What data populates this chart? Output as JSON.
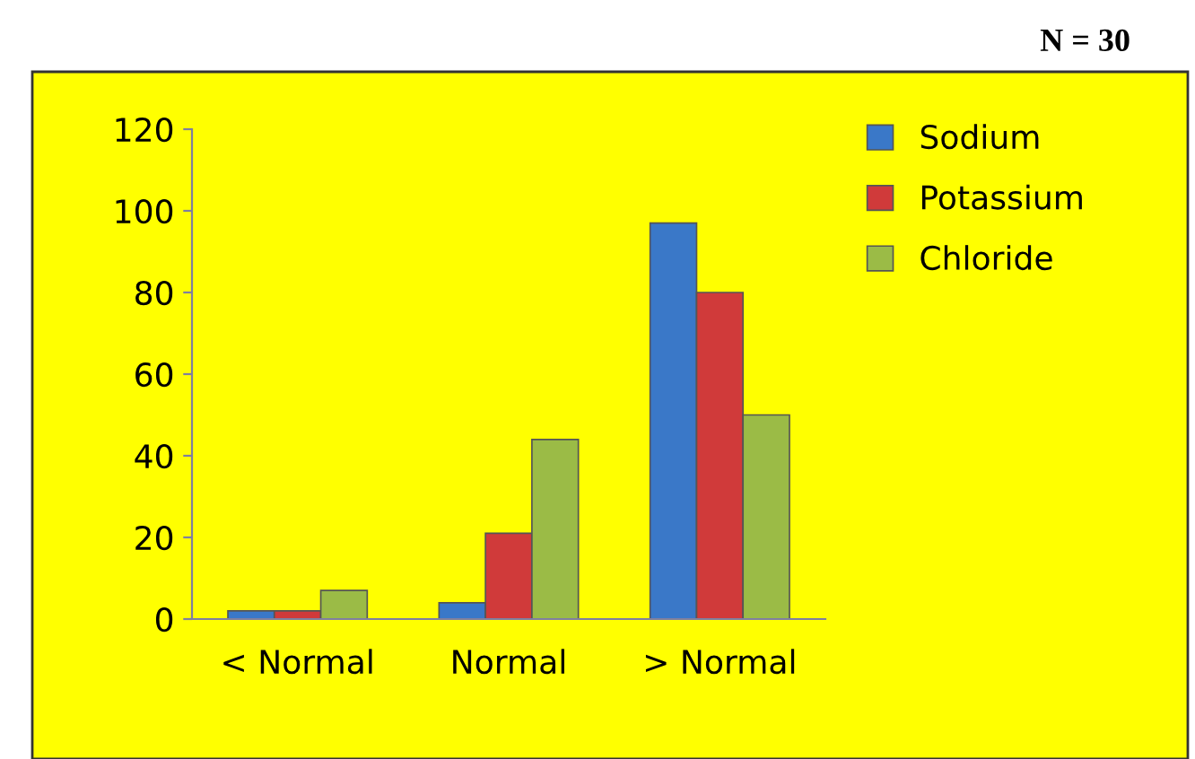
{
  "chart_data": {
    "type": "bar",
    "categories": [
      "< Normal",
      "Normal",
      "> Normal"
    ],
    "series": [
      {
        "name": "Sodium",
        "color": "#3a78c8",
        "values": [
          2,
          4,
          97
        ]
      },
      {
        "name": "Potassium",
        "color": "#d03a3a",
        "values": [
          2,
          21,
          80
        ]
      },
      {
        "name": "Chloride",
        "color": "#9bbb46",
        "values": [
          7,
          44,
          50
        ]
      }
    ],
    "ylim": [
      0,
      120
    ],
    "yticks": [
      0,
      20,
      40,
      60,
      80,
      100,
      120
    ],
    "grid": false,
    "legend": "top right",
    "annotations": [
      "N = 30"
    ]
  }
}
